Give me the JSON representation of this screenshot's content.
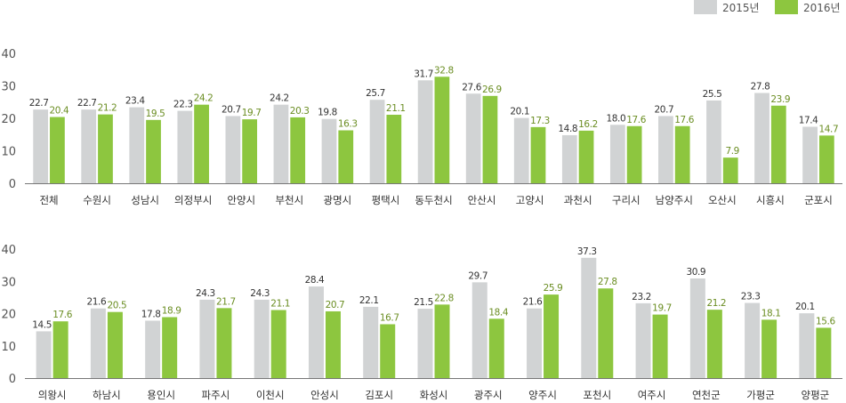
{
  "chart_data": [
    {
      "type": "bar",
      "ylim": [
        0,
        40
      ],
      "yticks": [
        0,
        10,
        20,
        30,
        40
      ],
      "grid": false,
      "legend": "top-right",
      "categories": [
        "전체",
        "수원시",
        "성남시",
        "의정부시",
        "안양시",
        "부천시",
        "광명시",
        "평택시",
        "동두천시",
        "안산시",
        "고양시",
        "과천시",
        "구리시",
        "남양주시",
        "오산시",
        "시흥시",
        "군포시"
      ],
      "series": [
        {
          "name": "2015년",
          "color": "#d1d3d4",
          "values": [
            22.7,
            22.7,
            23.4,
            22.3,
            20.7,
            24.2,
            19.8,
            25.7,
            31.7,
            27.6,
            20.1,
            14.8,
            18.0,
            20.7,
            25.5,
            27.8,
            17.4
          ]
        },
        {
          "name": "2016년",
          "color": "#8dc63f",
          "values": [
            20.4,
            21.2,
            19.5,
            24.2,
            19.7,
            20.3,
            16.3,
            21.1,
            32.8,
            26.9,
            17.3,
            16.2,
            17.6,
            17.6,
            7.9,
            23.9,
            14.7
          ]
        }
      ]
    },
    {
      "type": "bar",
      "ylim": [
        0,
        40
      ],
      "yticks": [
        0,
        10,
        20,
        30,
        40
      ],
      "grid": false,
      "categories": [
        "의왕시",
        "하남시",
        "용인시",
        "파주시",
        "이천시",
        "안성시",
        "김포시",
        "화성시",
        "광주시",
        "양주시",
        "포천시",
        "여주시",
        "연천군",
        "가평군",
        "양평군"
      ],
      "series": [
        {
          "name": "2015년",
          "color": "#d1d3d4",
          "values": [
            14.5,
            21.6,
            17.8,
            24.3,
            24.3,
            28.4,
            22.1,
            21.5,
            29.7,
            21.6,
            37.3,
            23.2,
            30.9,
            23.3,
            20.1
          ]
        },
        {
          "name": "2016년",
          "color": "#8dc63f",
          "values": [
            17.6,
            20.5,
            18.9,
            21.7,
            21.1,
            20.7,
            16.7,
            22.8,
            18.4,
            25.9,
            27.8,
            19.7,
            21.2,
            18.1,
            15.6
          ]
        }
      ]
    }
  ],
  "legend": {
    "items": [
      {
        "label": "2015년",
        "color": "#d1d3d4"
      },
      {
        "label": "2016년",
        "color": "#8dc63f"
      }
    ]
  },
  "colors": {
    "series1_label": "#333333",
    "series2_label": "#6b8e23",
    "axis": "#777777"
  }
}
